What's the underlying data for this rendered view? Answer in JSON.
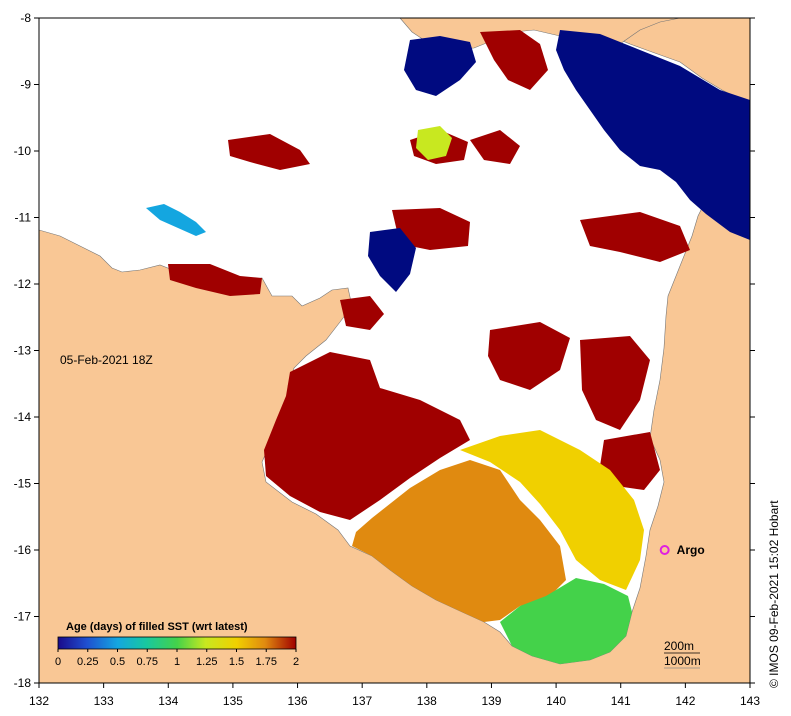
{
  "date_label": "05-Feb-2021 18Z",
  "credit": "© IMOS 09-Feb-2021 15:02 Hobart",
  "argo_label": "Argo",
  "colorbar": {
    "title": "Age (days) of filled SST (wrt latest)",
    "ticks": [
      "0",
      "0.25",
      "0.5",
      "0.75",
      "1",
      "1.25",
      "1.5",
      "1.75",
      "2"
    ],
    "colors": [
      "#1a0a8a",
      "#1f4fd0",
      "#14a6e0",
      "#18c8a0",
      "#44d24a",
      "#c8e820",
      "#f0d000",
      "#e08a10",
      "#c83208",
      "#a00000"
    ]
  },
  "scale": {
    "top": "200m",
    "bottom": "1000m"
  },
  "axes": {
    "x_ticks": [
      "132",
      "133",
      "134",
      "135",
      "136",
      "137",
      "138",
      "139",
      "140",
      "141",
      "142",
      "143"
    ],
    "y_ticks": [
      "-8",
      "-9",
      "-10",
      "-11",
      "-12",
      "-13",
      "-14",
      "-15",
      "-16",
      "-17",
      "-18"
    ],
    "lon_range": [
      132,
      143
    ],
    "lat_range": [
      -18,
      -8
    ]
  },
  "argo_float": {
    "lon": 141.68,
    "lat": -16.0
  },
  "colors": {
    "land": "#f9c795",
    "ocean_nodata": "#ffffff",
    "age_2": "#a00000",
    "age_0": "#000a80",
    "age_mid": "#f0d000",
    "age_1p7": "#e08a10",
    "age_1": "#44d24a",
    "argo": "#e020e0"
  }
}
